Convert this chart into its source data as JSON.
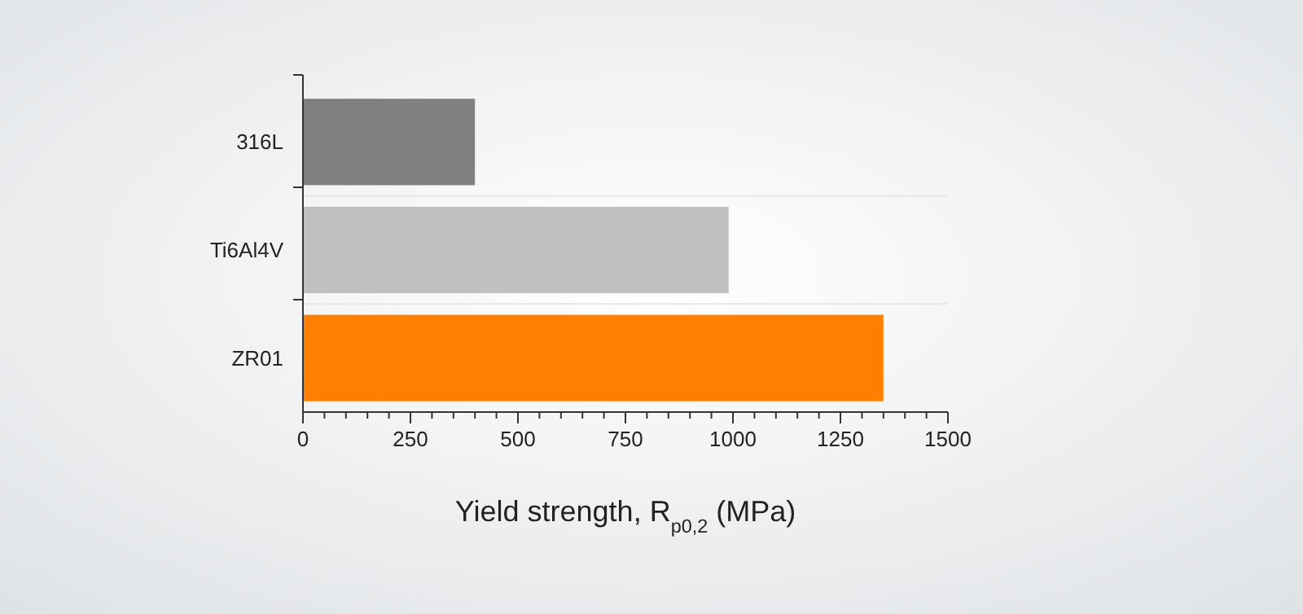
{
  "chart_data": {
    "type": "bar",
    "orientation": "horizontal",
    "categories": [
      "316L",
      "Ti6Al4V",
      "ZR01"
    ],
    "values": [
      400,
      990,
      1350
    ],
    "colors": [
      "#808080",
      "#c0c0c0",
      "#ff8000"
    ],
    "xlabel": "Yield strength, R$_{p0,2}$ (MPa)",
    "xlim": [
      0,
      1500
    ],
    "xticks": [
      0,
      {
        "value": 50,
        "label": null
      },
      {
        "value": 100,
        "label": null
      },
      {
        "value": 150,
        "label": null
      },
      {
        "value": 200,
        "label": null
      },
      250,
      {
        "value": 300,
        "label": null
      },
      {
        "value": 350,
        "label": null
      },
      {
        "value": 400,
        "label": null
      },
      {
        "value": 450,
        "label": null
      },
      500,
      {
        "value": 550,
        "label": null
      },
      {
        "value": 600,
        "label": null
      },
      {
        "value": 650,
        "label": null
      },
      {
        "value": 700,
        "label": null
      },
      750,
      {
        "value": 800,
        "label": null
      },
      {
        "value": 850,
        "label": null
      },
      {
        "value": 900,
        "label": null
      },
      {
        "value": 950,
        "label": null
      },
      1000,
      {
        "value": 1050,
        "label": null
      },
      {
        "value": 1100,
        "label": null
      },
      {
        "value": 1150,
        "label": null
      },
      {
        "value": 1200,
        "label": null
      },
      1250,
      {
        "value": 1300,
        "label": null
      },
      {
        "value": 1350,
        "label": null
      },
      {
        "value": 1400,
        "label": null
      },
      {
        "value": 1450,
        "label": null
      },
      1500
    ]
  }
}
